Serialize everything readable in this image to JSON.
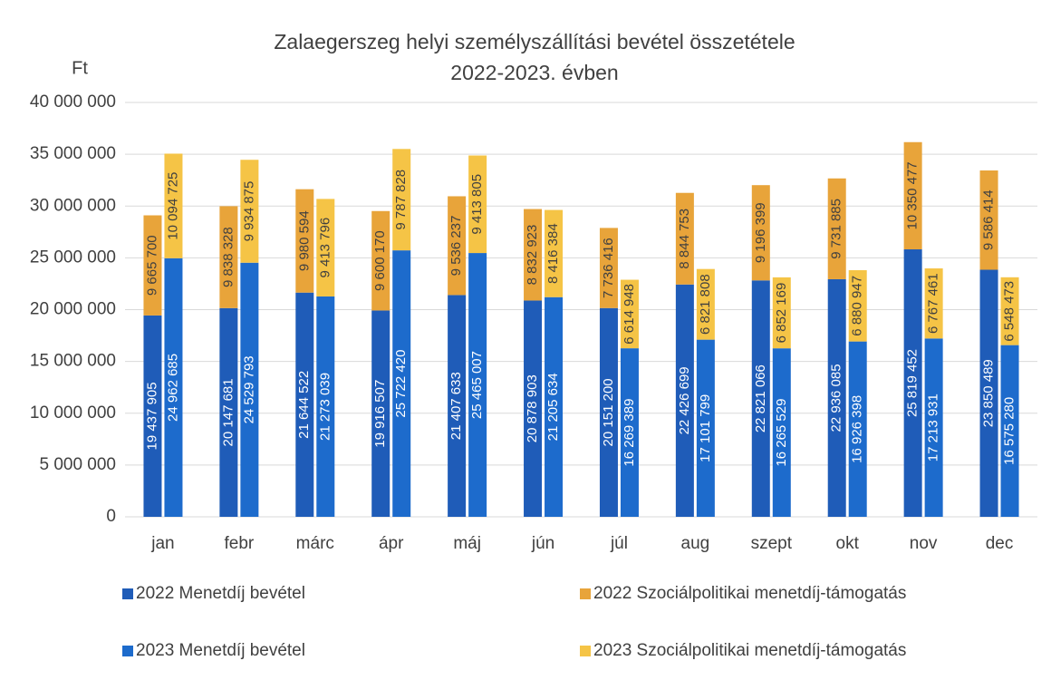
{
  "chart_data": {
    "type": "stacked_grouped_bar",
    "title": [
      "Zalaegerszeg helyi személyszállítási bevétel összetétele",
      "2022-2023. évben"
    ],
    "y_label": "Ft",
    "categories": [
      "jan",
      "febr",
      "márc",
      "ápr",
      "máj",
      "jún",
      "júl",
      "aug",
      "szept",
      "okt",
      "nov",
      "dec"
    ],
    "ylim": [
      0,
      40000000
    ],
    "yticks": [
      0,
      {
        "value": 5000000,
        "label": "5 000 000"
      },
      {
        "value": 10000000,
        "label": "10 000 000"
      },
      {
        "value": 15000000,
        "label": "15 000 000"
      },
      {
        "value": 20000000,
        "label": "20 000 000"
      },
      {
        "value": 25000000,
        "label": "25 000 000"
      },
      {
        "value": 30000000,
        "label": "30 000 000"
      },
      {
        "value": 35000000,
        "label": "35 000 000"
      },
      {
        "value": 40000000,
        "label": "40 000 000"
      }
    ],
    "series": [
      {
        "name": "2022 Menetdíj bevétel",
        "color": "#1f5cb8",
        "stack": 0,
        "values": [
          19437905,
          20147681,
          21644522,
          19916507,
          21407633,
          20878903,
          20151200,
          22426699,
          22821066,
          22936085,
          25819452,
          23850489
        ],
        "value_labels": [
          "19 437 905",
          "20 147 681",
          "21 644 522",
          "19 916 507",
          "21 407 633",
          "20 878 903",
          "20 151 200",
          "22 426 699",
          "22 821 066",
          "22 936 085",
          "25 819 452",
          "23 850 489"
        ]
      },
      {
        "name": "2022 Szociálpolitikai menetdíj-támogatás",
        "color": "#e8a43a",
        "stack": 0,
        "values": [
          9665700,
          9838328,
          9980594,
          9600170,
          9536237,
          8832923,
          7736416,
          8844753,
          9196399,
          9731885,
          10350477,
          9586414
        ],
        "value_labels": [
          "9 665 700",
          "9 838 328",
          "9 980 594",
          "9 600 170",
          "9 536 237",
          "8 832 923",
          "7 736 416",
          "8 844 753",
          "9 196 399",
          "9 731 885",
          "10 350 477",
          "9 586 414"
        ]
      },
      {
        "name": "2023 Menetdíj bevétel",
        "color": "#1d6bcc",
        "stack": 1,
        "values": [
          24962685,
          24529793,
          21273039,
          25722420,
          25465007,
          21205634,
          16269389,
          17101799,
          16265529,
          16926398,
          17213931,
          16575280
        ],
        "value_labels": [
          "24 962 685",
          "24 529 793",
          "21 273 039",
          "25 722 420",
          "25 465 007",
          "21 205 634",
          "16 269 389",
          "17 101 799",
          "16 265 529",
          "16 926 398",
          "17 213 931",
          "16 575 280"
        ]
      },
      {
        "name": "2023 Szociálpolitikai menetdíj-támogatás",
        "color": "#f5c446",
        "stack": 1,
        "values": [
          10094725,
          9934875,
          9413796,
          9787828,
          9413805,
          8416384,
          6614948,
          6821808,
          6852169,
          6880947,
          6767461,
          6548473
        ],
        "value_labels": [
          "10 094 725",
          "9 934 875",
          "9 413 796",
          "9 787 828",
          "9 413 805",
          "8 416 384",
          "6 614 948",
          "6 821 808",
          "6 852 169",
          "6 880 947",
          "6 767 461",
          "6 548 473"
        ]
      }
    ]
  }
}
